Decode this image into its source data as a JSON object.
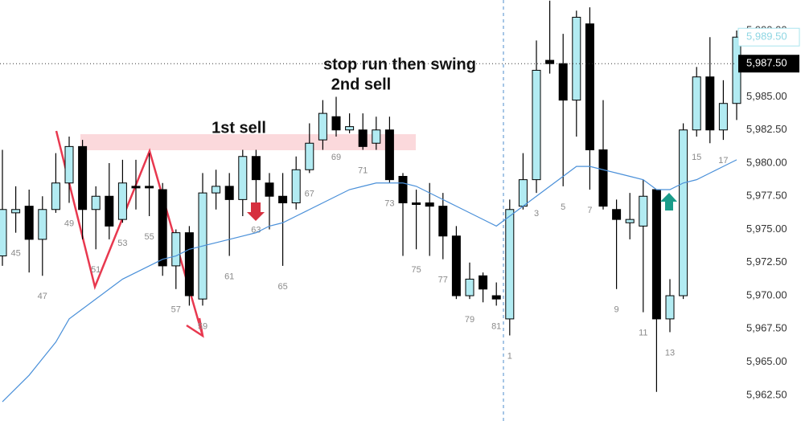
{
  "chart_data": {
    "type": "candlestick",
    "categories": [
      null,
      "45",
      null,
      "47",
      null,
      "49",
      null,
      "51",
      null,
      "53",
      null,
      "55",
      null,
      "57",
      null,
      "59",
      null,
      "61",
      null,
      "63",
      null,
      "65",
      null,
      "67",
      null,
      "69",
      null,
      "71",
      null,
      "73",
      null,
      "75",
      null,
      "77",
      null,
      "79",
      null,
      "81",
      "1",
      null,
      "3",
      null,
      "5",
      null,
      "7",
      null,
      "9",
      null,
      "11",
      null,
      "13",
      null,
      "15",
      null,
      "17",
      null
    ],
    "open": [
      5973,
      5976.25,
      5976.75,
      5974.25,
      5976.5,
      5978.5,
      5981.25,
      5976.5,
      5977.5,
      5975.75,
      5978.25,
      5978.25,
      5978,
      5972.25,
      5974.75,
      5969.75,
      5977.75,
      5978.25,
      5977.25,
      5980.5,
      5978.5,
      5977.5,
      5977,
      5979.5,
      5981.75,
      5983.5,
      5982.5,
      5982.5,
      5981.5,
      5982.5,
      5979,
      5977,
      5977,
      5976.75,
      5974.5,
      5970,
      5971.5,
      5970,
      5968.25,
      5976.75,
      5978.75,
      5987.75,
      5987.5,
      5984.75,
      5990.5,
      5981,
      5976.5,
      5975.5,
      5975.25,
      5978,
      5968.25,
      5970,
      5982.5,
      5986.5,
      5982.5,
      5984.5
    ],
    "high": [
      5981,
      5978.25,
      5978,
      5977.5,
      5980.75,
      5982,
      5981.75,
      5978.25,
      5980,
      5980.25,
      5980.25,
      5980.75,
      5978.5,
      5975,
      5975.25,
      5979.25,
      5979.5,
      5979.25,
      5981,
      5981,
      5979.25,
      5979.25,
      5980.5,
      5983,
      5984.75,
      5985,
      5983.75,
      5983.75,
      5983.5,
      5983.5,
      5979.25,
      5978,
      5978.5,
      5977.75,
      5975.25,
      5972.5,
      5971.75,
      5971,
      5977.25,
      5980.75,
      5989.25,
      5992.25,
      5989.75,
      5991.5,
      5991.75,
      5984.75,
      5977.25,
      5977.75,
      5978.75,
      5978,
      5971.25,
      5983,
      5987.25,
      5989.5,
      5986.25,
      5990
    ],
    "low": [
      5972.25,
      5974.75,
      5971.75,
      5971.5,
      5976.25,
      5977,
      5974.25,
      5973.5,
      5974.25,
      5975.5,
      5976.5,
      5976,
      5971.5,
      5970.5,
      5969.25,
      5969.25,
      5976.5,
      5973,
      5976,
      5976.5,
      5975,
      5972.25,
      5976.5,
      5979.25,
      5981,
      5982,
      5982.25,
      5981,
      5981,
      5978.5,
      5973,
      5973.5,
      5973,
      5972.75,
      5969.75,
      5969.75,
      5969.5,
      5969.25,
      5967,
      5976.5,
      5977.75,
      5986.75,
      5978.25,
      5982,
      5978,
      5976.5,
      5970.5,
      5974.25,
      5968.75,
      5962.75,
      5967.25,
      5969.75,
      5982,
      5981.5,
      5981.75,
      5983.25
    ],
    "close": [
      5976.5,
      5976.5,
      5974.25,
      5976.5,
      5978.5,
      5981.25,
      5976.5,
      5977.5,
      5975.25,
      5978.5,
      5978.25,
      5978.25,
      5972.25,
      5974.75,
      5970,
      5977.75,
      5978.25,
      5977.25,
      5980.5,
      5978.75,
      5977.5,
      5977,
      5979.5,
      5981.5,
      5983.75,
      5982.5,
      5982.75,
      5981.25,
      5982.5,
      5978.75,
      5977,
      5977,
      5976.75,
      5974.5,
      5970,
      5971.25,
      5970.5,
      5969.75,
      5976.5,
      5978.75,
      5987,
      5987.5,
      5984.75,
      5991,
      5981,
      5976.75,
      5975.75,
      5975.75,
      5977.5,
      5968.25,
      5970,
      5982.5,
      5986.5,
      5982.5,
      5984.5,
      5989.5
    ],
    "up_color": "#b2ebf2",
    "down_color": "#000000",
    "ma": {
      "color": "#4a90d9",
      "values": [
        5962,
        5963,
        5964,
        5965.25,
        5966.5,
        5968.25,
        5969,
        5969.75,
        5970.5,
        5971.25,
        5971.75,
        5972.25,
        5972.75,
        5973,
        5973.5,
        5973.75,
        5974,
        5974.25,
        5974.5,
        5974.75,
        5975.25,
        5975.5,
        5976,
        5976.5,
        5977,
        5977.5,
        5978,
        5978.25,
        5978.5,
        5978.5,
        5978.5,
        5978.25,
        5977.75,
        5977.25,
        5976.75,
        5976.25,
        5975.75,
        5975.25,
        5976,
        5976.75,
        5977.5,
        5978.25,
        5979,
        5979.75,
        5979.75,
        5979.5,
        5979.25,
        5979,
        5978.75,
        5978,
        5978,
        5978.5,
        5978.75,
        5979.25,
        5979.75,
        5980.25
      ]
    },
    "ylim": [
      5960.55,
      5992.3
    ],
    "yticks": [
      {
        "value": 5962.5,
        "label": "5,962.50"
      },
      {
        "value": 5965,
        "label": "5,965.00"
      },
      {
        "value": 5967.5,
        "label": "5,967.50"
      },
      {
        "value": 5970,
        "label": "5,970.00"
      },
      {
        "value": 5972.5,
        "label": "5,972.50"
      },
      {
        "value": 5975,
        "label": "5,975.00"
      },
      {
        "value": 5977.5,
        "label": "5,977.50"
      },
      {
        "value": 5980,
        "label": "5,980.00"
      },
      {
        "value": 5982.5,
        "label": "5,982.50"
      },
      {
        "value": 5985,
        "label": "5,985.00"
      },
      {
        "value": 5990,
        "label": "5,990.00"
      }
    ],
    "price_labels": [
      {
        "value": 5989.5,
        "label": "5,989.50"
      },
      {
        "value": 5987.5,
        "label": "5,987.50"
      }
    ],
    "annotations": [
      "stop run then swing",
      "2nd sell",
      "1st sell"
    ]
  }
}
